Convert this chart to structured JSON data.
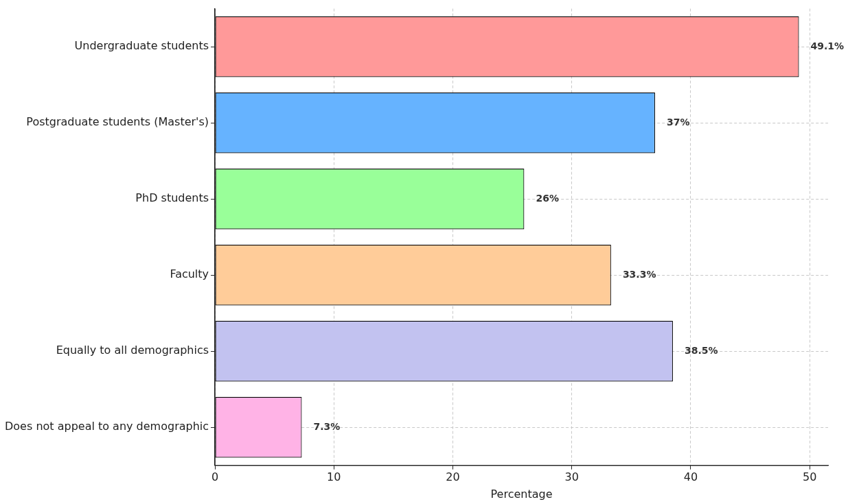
{
  "chart_data": {
    "type": "bar",
    "orientation": "horizontal",
    "xlabel": "Percentage",
    "categories": [
      "Undergraduate students",
      "Postgraduate students (Master's)",
      "PhD students",
      "Faculty",
      "Equally to all demographics",
      "Does not appeal to any demographic"
    ],
    "values": [
      49.1,
      37,
      26,
      33.3,
      38.5,
      7.3
    ],
    "colors": [
      "#ff9999",
      "#66b3ff",
      "#99ff99",
      "#ffcc99",
      "#c2c2f0",
      "#ffb3e6"
    ],
    "value_labels": [
      "49.1%",
      "37%",
      "26%",
      "33.3%",
      "38.5%",
      "7.3%"
    ],
    "xlim": [
      0,
      51.55
    ],
    "xticks": [
      0,
      10,
      20,
      30,
      40,
      50
    ],
    "grid": true,
    "legend": false
  }
}
